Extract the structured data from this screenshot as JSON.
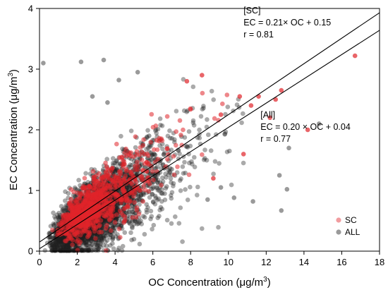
{
  "chart_data": {
    "type": "scatter",
    "xlabel": "OC Concentration (μg/m",
    "xlabel_sup": "3",
    "xlabel_end": ")",
    "ylabel": "EC Concentration (μg/m",
    "ylabel_sup": "3",
    "ylabel_end": ")",
    "xlim": [
      0,
      18
    ],
    "ylim": [
      0,
      4
    ],
    "xticks": [
      0,
      2,
      4,
      6,
      8,
      10,
      12,
      14,
      16,
      18
    ],
    "yticks": [
      0,
      1,
      2,
      3,
      4
    ],
    "legend_position": "bottom-right",
    "series": [
      {
        "name": "SC",
        "color": "#e0242a",
        "fit": {
          "slope": 0.21,
          "intercept": 0.15,
          "x_range": [
            0,
            18
          ]
        },
        "cloud": {
          "count": 900,
          "x_mode": 2.9,
          "x_sigma": 1.6,
          "y_noise": 0.28
        },
        "outliers": [
          [
            16.7,
            3.22
          ],
          [
            12.8,
            2.65
          ],
          [
            12.2,
            2.2
          ],
          [
            11.6,
            2.55
          ],
          [
            10.6,
            2.55
          ],
          [
            11.2,
            2.4
          ],
          [
            8.6,
            2.9
          ],
          [
            9.6,
            2.25
          ],
          [
            7.8,
            2.8
          ],
          [
            10.8,
            1.6
          ],
          [
            12.5,
            2.5
          ],
          [
            9.2,
            1.2
          ],
          [
            14.2,
            2.0
          ]
        ]
      },
      {
        "name": "ALL",
        "color": "#1f1f1f",
        "fit": {
          "slope": 0.2,
          "intercept": 0.04,
          "x_range": [
            0,
            18
          ]
        },
        "cloud": {
          "count": 3200,
          "x_mode": 2.7,
          "x_sigma": 1.9,
          "y_noise": 0.35
        },
        "outliers": [
          [
            0.2,
            3.1
          ],
          [
            2.2,
            3.12
          ],
          [
            3.4,
            3.15
          ],
          [
            4.2,
            2.82
          ],
          [
            5.2,
            2.95
          ],
          [
            3.6,
            2.45
          ],
          [
            2.8,
            2.55
          ],
          [
            12.8,
            0.67
          ],
          [
            13.1,
            1.02
          ],
          [
            11.3,
            0.82
          ],
          [
            10.3,
            0.88
          ],
          [
            13.2,
            1.7
          ],
          [
            14.8,
            2.1
          ],
          [
            12.7,
            1.25
          ],
          [
            9.6,
            1.05
          ],
          [
            8.9,
            0.85
          ],
          [
            6.5,
            0.95
          ],
          [
            7.0,
            1.35
          ],
          [
            5.8,
            1.9
          ]
        ]
      }
    ],
    "annotations": [
      {
        "lines": [
          "[SC]",
          "EC = 0.21× OC + 0.15",
          "r = 0.81"
        ],
        "anchor": [
          10.8,
          3.92
        ]
      },
      {
        "lines": [
          "[All]",
          "EC = 0.20 × OC + 0.04",
          "r = 0.77"
        ],
        "anchor": [
          11.7,
          2.2
        ]
      }
    ]
  }
}
